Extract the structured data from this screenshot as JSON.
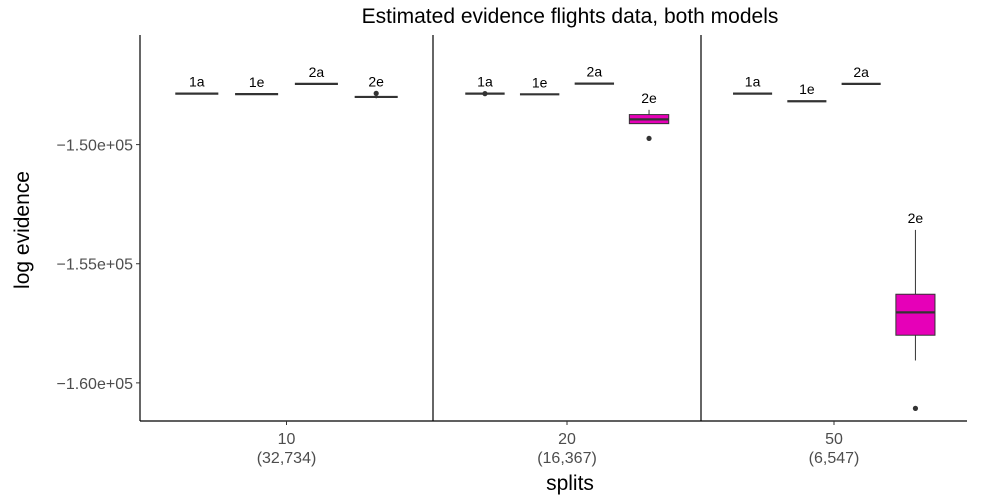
{
  "chart_data": {
    "type": "box",
    "title": "Estimated evidence flights data, both models",
    "xlabel": "splits",
    "ylabel": "log evidence",
    "ylim": [
      -161600,
      -145400
    ],
    "yticks": [
      -150000,
      -155000,
      -160000
    ],
    "ytick_labels": [
      "−1.50e+05",
      "−1.55e+05",
      "−1.60e+05"
    ],
    "grid": false,
    "colors": {
      "fill": "#e600b8",
      "line": "#333333",
      "axis": "#000000"
    },
    "groups": [
      {
        "label": "10",
        "sublabel": "(32,734)",
        "boxes": [
          {
            "name": "1a",
            "q1": -147860,
            "median": -147860,
            "q3": -147860,
            "whisker_low": -147860,
            "whisker_high": -147860,
            "outliers": []
          },
          {
            "name": "1e",
            "q1": -147880,
            "median": -147880,
            "q3": -147880,
            "whisker_low": -147880,
            "whisker_high": -147880,
            "outliers": []
          },
          {
            "name": "2a",
            "q1": -147450,
            "median": -147450,
            "q3": -147450,
            "whisker_low": -147450,
            "whisker_high": -147450,
            "outliers": []
          },
          {
            "name": "2e",
            "q1": -148040,
            "median": -148000,
            "q3": -147960,
            "whisker_low": -148060,
            "whisker_high": -147940,
            "outliers": [
              -147850
            ]
          }
        ]
      },
      {
        "label": "20",
        "sublabel": "(16,367)",
        "boxes": [
          {
            "name": "1a",
            "q1": -147860,
            "median": -147860,
            "q3": -147860,
            "whisker_low": -147860,
            "whisker_high": -147860,
            "outliers": [
              -147860
            ]
          },
          {
            "name": "1e",
            "q1": -147890,
            "median": -147890,
            "q3": -147890,
            "whisker_low": -147890,
            "whisker_high": -147890,
            "outliers": []
          },
          {
            "name": "2a",
            "q1": -147440,
            "median": -147440,
            "q3": -147440,
            "whisker_low": -147440,
            "whisker_high": -147440,
            "outliers": []
          },
          {
            "name": "2e",
            "q1": -149120,
            "median": -148940,
            "q3": -148740,
            "whisker_low": -149120,
            "whisker_high": -148540,
            "outliers": [
              -149740
            ]
          }
        ]
      },
      {
        "label": "50",
        "sublabel": "(6,547)",
        "boxes": [
          {
            "name": "1a",
            "q1": -147860,
            "median": -147860,
            "q3": -147860,
            "whisker_low": -147860,
            "whisker_high": -147860,
            "outliers": []
          },
          {
            "name": "1e",
            "q1": -148180,
            "median": -148180,
            "q3": -148180,
            "whisker_low": -148180,
            "whisker_high": -148180,
            "outliers": []
          },
          {
            "name": "2a",
            "q1": -147450,
            "median": -147450,
            "q3": -147450,
            "whisker_low": -147450,
            "whisker_high": -147450,
            "outliers": []
          },
          {
            "name": "2e",
            "q1": -158000,
            "median": -157040,
            "q3": -156280,
            "whisker_low": -159060,
            "whisker_high": -153580,
            "outliers": [
              -161070
            ]
          }
        ]
      }
    ]
  }
}
